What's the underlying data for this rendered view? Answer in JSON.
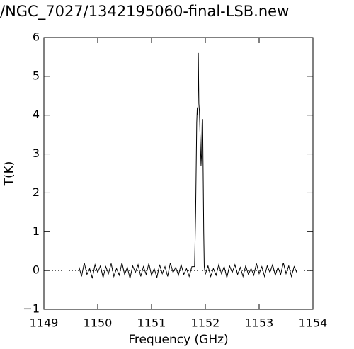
{
  "chart_data": {
    "type": "line",
    "title": "/NGC_7027/1342195060-final-LSB.new",
    "x_label": "Frequency (GHz)",
    "y_label": "T(K)",
    "color": "#000000",
    "reference_line": 0,
    "xlim": [
      1149,
      1154
    ],
    "ylim": [
      -1,
      6
    ],
    "xticks": [
      1149,
      1150,
      1151,
      1152,
      1153,
      1154
    ],
    "yticks": [
      {
        "value": -1,
        "label": "−1"
      },
      0,
      1,
      2,
      3,
      4,
      5,
      6
    ],
    "x": [
      1149.65,
      1149.7,
      1149.75,
      1149.8,
      1149.85,
      1149.9,
      1149.95,
      1150.0,
      1150.05,
      1150.1,
      1150.15,
      1150.2,
      1150.25,
      1150.3,
      1150.35,
      1150.4,
      1150.45,
      1150.5,
      1150.55,
      1150.6,
      1150.65,
      1150.7,
      1150.75,
      1150.8,
      1150.85,
      1150.9,
      1150.95,
      1151.0,
      1151.05,
      1151.1,
      1151.15,
      1151.2,
      1151.25,
      1151.3,
      1151.35,
      1151.4,
      1151.45,
      1151.5,
      1151.55,
      1151.6,
      1151.65,
      1151.7,
      1151.75,
      1151.8,
      1151.82,
      1151.84,
      1151.85,
      1151.86,
      1151.87,
      1151.88,
      1151.89,
      1151.9,
      1151.91,
      1151.92,
      1151.93,
      1151.94,
      1151.95,
      1151.96,
      1151.97,
      1151.98,
      1152.0,
      1152.05,
      1152.1,
      1152.15,
      1152.2,
      1152.25,
      1152.3,
      1152.35,
      1152.4,
      1152.45,
      1152.5,
      1152.55,
      1152.6,
      1152.65,
      1152.7,
      1152.75,
      1152.8,
      1152.85,
      1152.9,
      1152.95,
      1153.0,
      1153.05,
      1153.1,
      1153.15,
      1153.2,
      1153.25,
      1153.3,
      1153.35,
      1153.4,
      1153.45,
      1153.5,
      1153.55,
      1153.6,
      1153.65,
      1153.7
    ],
    "values": [
      0.1,
      -0.15,
      0.2,
      -0.1,
      0.05,
      -0.2,
      0.15,
      -0.05,
      0.12,
      -0.18,
      0.1,
      -0.08,
      0.18,
      -0.15,
      0.05,
      -0.12,
      0.2,
      -0.1,
      0.08,
      -0.2,
      0.12,
      -0.05,
      0.15,
      -0.15,
      0.1,
      -0.1,
      0.18,
      -0.12,
      0.05,
      -0.18,
      0.15,
      -0.08,
      0.1,
      -0.15,
      0.2,
      -0.05,
      0.08,
      -0.12,
      0.15,
      -0.1,
      0.05,
      -0.15,
      0.1,
      0.1,
      1.5,
      3.8,
      4.2,
      4.0,
      5.6,
      4.3,
      4.1,
      3.6,
      3.2,
      2.7,
      3.0,
      3.8,
      3.9,
      2.5,
      1.0,
      0.1,
      -0.1,
      0.12,
      -0.15,
      0.05,
      -0.12,
      0.15,
      -0.08,
      0.1,
      -0.18,
      0.12,
      -0.05,
      0.15,
      -0.1,
      0.08,
      -0.15,
      0.12,
      -0.1,
      0.05,
      -0.12,
      0.18,
      -0.08,
      0.1,
      -0.15,
      0.12,
      -0.05,
      0.15,
      -0.12,
      0.08,
      -0.1,
      0.2,
      -0.08,
      0.12,
      -0.15,
      0.1,
      -0.05
    ]
  }
}
